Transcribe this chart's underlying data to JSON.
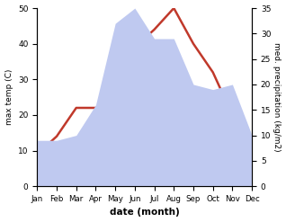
{
  "months": [
    "Jan",
    "Feb",
    "Mar",
    "Apr",
    "May",
    "Jun",
    "Jul",
    "Aug",
    "Sep",
    "Oct",
    "Nov",
    "Dec"
  ],
  "temperature": [
    9,
    14,
    22,
    22,
    25,
    39,
    44,
    50,
    40,
    32,
    20,
    10
  ],
  "precipitation": [
    9,
    9,
    10,
    16,
    32,
    35,
    29,
    29,
    20,
    19,
    20,
    10
  ],
  "temp_ylim": [
    0,
    50
  ],
  "precip_ylim": [
    0,
    35
  ],
  "temp_color": "#c0392b",
  "precip_fill_color": "#bfc9f0",
  "xlabel": "date (month)",
  "ylabel_left": "max temp (C)",
  "ylabel_right": "med. precipitation (kg/m2)",
  "background_color": "#ffffff",
  "line_width": 1.8
}
